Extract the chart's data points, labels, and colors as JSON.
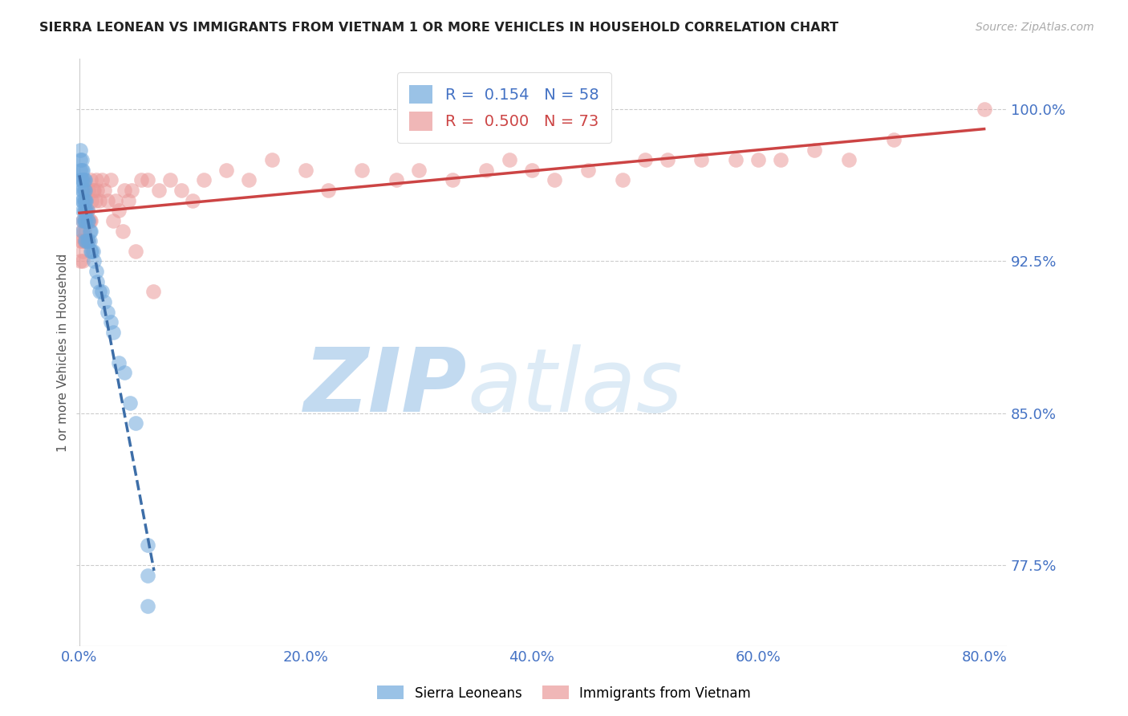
{
  "title": "SIERRA LEONEAN VS IMMIGRANTS FROM VIETNAM 1 OR MORE VEHICLES IN HOUSEHOLD CORRELATION CHART",
  "source": "Source: ZipAtlas.com",
  "ylabel": "1 or more Vehicles in Household",
  "xlabel_ticks": [
    "0.0%",
    "20.0%",
    "40.0%",
    "60.0%",
    "80.0%"
  ],
  "ytick_labels": [
    "100.0%",
    "92.5%",
    "85.0%",
    "77.5%"
  ],
  "ytick_values": [
    1.0,
    0.925,
    0.85,
    0.775
  ],
  "xlim": [
    -0.003,
    0.82
  ],
  "ylim": [
    0.735,
    1.025
  ],
  "legend_blue_r": "0.154",
  "legend_blue_n": "58",
  "legend_pink_r": "0.500",
  "legend_pink_n": "73",
  "blue_color": "#6fa8dc",
  "pink_color": "#ea9999",
  "blue_line_color": "#3d6ea8",
  "pink_line_color": "#cc4444",
  "watermark_zip": "ZIP",
  "watermark_atlas": "atlas",
  "watermark_color": "#c9dff5",
  "blue_scatter_x": [
    0.001,
    0.001,
    0.001,
    0.001,
    0.002,
    0.002,
    0.002,
    0.002,
    0.002,
    0.003,
    0.003,
    0.003,
    0.003,
    0.003,
    0.003,
    0.003,
    0.004,
    0.004,
    0.004,
    0.004,
    0.004,
    0.005,
    0.005,
    0.005,
    0.005,
    0.005,
    0.005,
    0.006,
    0.006,
    0.006,
    0.006,
    0.007,
    0.007,
    0.007,
    0.008,
    0.008,
    0.009,
    0.009,
    0.01,
    0.01,
    0.011,
    0.012,
    0.013,
    0.015,
    0.016,
    0.018,
    0.02,
    0.022,
    0.025,
    0.028,
    0.03,
    0.035,
    0.04,
    0.045,
    0.05,
    0.06,
    0.06,
    0.06
  ],
  "blue_scatter_y": [
    0.97,
    0.975,
    0.98,
    0.965,
    0.97,
    0.975,
    0.965,
    0.96,
    0.955,
    0.97,
    0.965,
    0.96,
    0.955,
    0.95,
    0.945,
    0.94,
    0.965,
    0.96,
    0.955,
    0.95,
    0.945,
    0.965,
    0.96,
    0.955,
    0.95,
    0.945,
    0.935,
    0.955,
    0.95,
    0.945,
    0.935,
    0.95,
    0.945,
    0.935,
    0.945,
    0.935,
    0.94,
    0.935,
    0.94,
    0.93,
    0.93,
    0.93,
    0.925,
    0.92,
    0.915,
    0.91,
    0.91,
    0.905,
    0.9,
    0.895,
    0.89,
    0.875,
    0.87,
    0.855,
    0.845,
    0.785,
    0.77,
    0.755
  ],
  "pink_scatter_x": [
    0.001,
    0.001,
    0.002,
    0.002,
    0.003,
    0.003,
    0.003,
    0.004,
    0.004,
    0.005,
    0.005,
    0.005,
    0.006,
    0.006,
    0.007,
    0.007,
    0.008,
    0.008,
    0.009,
    0.01,
    0.01,
    0.011,
    0.012,
    0.013,
    0.014,
    0.015,
    0.016,
    0.018,
    0.02,
    0.022,
    0.025,
    0.028,
    0.03,
    0.032,
    0.035,
    0.038,
    0.04,
    0.043,
    0.046,
    0.05,
    0.055,
    0.06,
    0.065,
    0.07,
    0.08,
    0.09,
    0.1,
    0.11,
    0.13,
    0.15,
    0.17,
    0.2,
    0.22,
    0.25,
    0.28,
    0.3,
    0.33,
    0.36,
    0.38,
    0.4,
    0.42,
    0.45,
    0.48,
    0.5,
    0.52,
    0.55,
    0.58,
    0.6,
    0.62,
    0.65,
    0.68,
    0.72,
    0.8
  ],
  "pink_scatter_y": [
    0.935,
    0.925,
    0.94,
    0.935,
    0.945,
    0.93,
    0.925,
    0.94,
    0.935,
    0.955,
    0.945,
    0.935,
    0.95,
    0.935,
    0.95,
    0.935,
    0.96,
    0.945,
    0.945,
    0.965,
    0.945,
    0.955,
    0.96,
    0.96,
    0.955,
    0.965,
    0.96,
    0.955,
    0.965,
    0.96,
    0.955,
    0.965,
    0.945,
    0.955,
    0.95,
    0.94,
    0.96,
    0.955,
    0.96,
    0.93,
    0.965,
    0.965,
    0.91,
    0.96,
    0.965,
    0.96,
    0.955,
    0.965,
    0.97,
    0.965,
    0.975,
    0.97,
    0.96,
    0.97,
    0.965,
    0.97,
    0.965,
    0.97,
    0.975,
    0.97,
    0.965,
    0.97,
    0.965,
    0.975,
    0.975,
    0.975,
    0.975,
    0.975,
    0.975,
    0.98,
    0.975,
    0.985,
    1.0
  ],
  "xtick_vals": [
    0.0,
    0.2,
    0.4,
    0.6,
    0.8
  ]
}
